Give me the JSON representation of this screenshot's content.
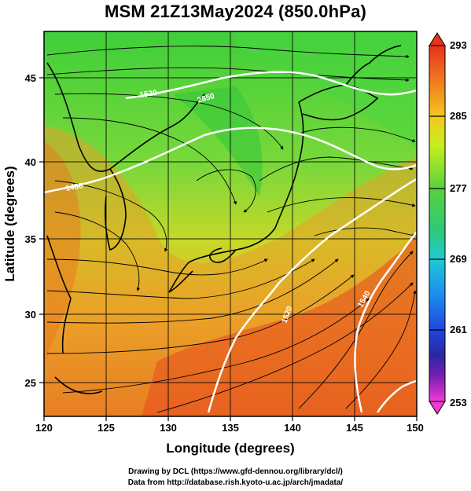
{
  "title": "MSM 21Z13May2024 (850.0hPa)",
  "x_axis": {
    "label": "Longitude (degrees)",
    "ticks": [
      "120",
      "125",
      "130",
      "135",
      "140",
      "145",
      "150"
    ]
  },
  "y_axis": {
    "label": "Latitude (degrees)",
    "ticks": [
      "25",
      "30",
      "35",
      "40",
      "45"
    ]
  },
  "colorbar": {
    "labels": [
      "293",
      "285",
      "277",
      "269",
      "261",
      "253"
    ],
    "colors": [
      "#e8321e",
      "#f07a1e",
      "#f5c81e",
      "#c8ee1e",
      "#5ad23c",
      "#2ec878",
      "#1ecad2",
      "#1e8cf0",
      "#1e46dc",
      "#2828a0",
      "#7a1eb4",
      "#c81ed2",
      "#f03cd2"
    ]
  },
  "contour_labels": [
    "2850",
    "1520",
    "1520",
    "1540",
    "1460"
  ],
  "credits": {
    "line1": "Drawing by DCL (https://www.gfd-dennou.org/library/dcl/)",
    "line2": "Data from http://database.rish.kyoto-u.ac.jp/arch/jmadata/"
  }
}
